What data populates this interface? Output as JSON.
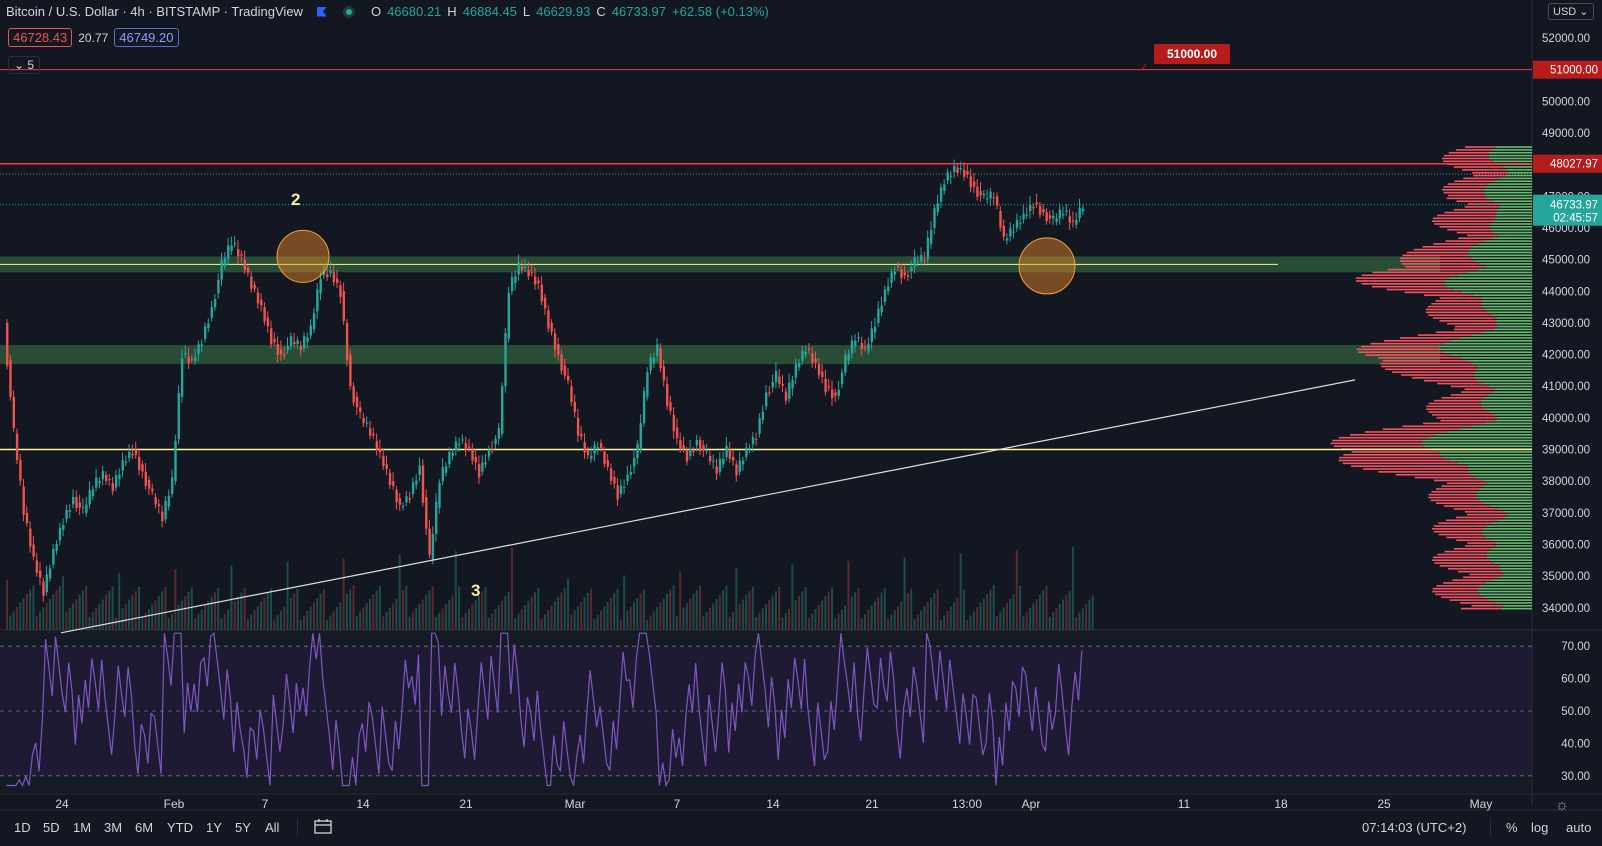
{
  "header": {
    "symbol": "Bitcoin / U.S. Dollar · 4h · BITSTAMP · TradingView",
    "open_label": "O",
    "open": "46680.21",
    "high_label": "H",
    "high": "46884.45",
    "low_label": "L",
    "low": "46629.93",
    "close_label": "C",
    "close": "46733.97",
    "change": "+62.58 (+0.13%)",
    "bid": "46728.43",
    "spread": "20.77",
    "ask": "46749.20",
    "indicator_count": "5"
  },
  "currency": "USD",
  "colors": {
    "background": "#131722",
    "up": "#26a69a",
    "down": "#ef5350",
    "volume_up": "#1f4b49",
    "volume_down": "#5b2a30",
    "resistance": "#f23645",
    "support": "#fff59d",
    "zone": "#2e5a3a",
    "rsi": "#7e57c2",
    "profile_up": "#66bb6a",
    "profile_down": "#f7525f"
  },
  "chart_data": {
    "type": "candlestick",
    "series": [
      {
        "name": "BTCUSD 4h",
        "description": "close path (approx)"
      }
    ],
    "x_ticks": [
      "24",
      "Feb",
      "7",
      "14",
      "21",
      "Mar",
      "7",
      "14",
      "21",
      "13:00",
      "Apr",
      "11",
      "18",
      "25",
      "May"
    ],
    "y_ticks": [
      "52000.00",
      "51000.00",
      "50000.00",
      "49000.00",
      "48000.00",
      "47000.00",
      "46000.00",
      "45000.00",
      "44000.00",
      "43000.00",
      "42000.00",
      "41000.00",
      "40000.00",
      "39000.00",
      "38000.00",
      "37000.00",
      "36000.00",
      "35000.00",
      "34000.00"
    ],
    "ylim": [
      33300,
      53200
    ],
    "close_path": [
      [
        0,
        43000
      ],
      [
        1,
        39500
      ],
      [
        2,
        37000
      ],
      [
        3,
        35500
      ],
      [
        4,
        34500
      ],
      [
        5,
        35800
      ],
      [
        6,
        36800
      ],
      [
        7,
        37500
      ],
      [
        8,
        37000
      ],
      [
        9,
        37800
      ],
      [
        10,
        38200
      ],
      [
        11,
        37800
      ],
      [
        12,
        38600
      ],
      [
        13,
        39000
      ],
      [
        14,
        38300
      ],
      [
        15,
        37500
      ],
      [
        16,
        36800
      ],
      [
        17,
        38000
      ],
      [
        18,
        42000
      ],
      [
        19,
        41800
      ],
      [
        20,
        42500
      ],
      [
        21,
        43500
      ],
      [
        22,
        44800
      ],
      [
        23,
        45500
      ],
      [
        24,
        45000
      ],
      [
        25,
        44200
      ],
      [
        26,
        43500
      ],
      [
        27,
        42500
      ],
      [
        28,
        42000
      ],
      [
        29,
        42400
      ],
      [
        30,
        42200
      ],
      [
        31,
        42800
      ],
      [
        32,
        44500
      ],
      [
        33,
        44600
      ],
      [
        34,
        44000
      ],
      [
        35,
        41000
      ],
      [
        36,
        40000
      ],
      [
        37,
        39500
      ],
      [
        38,
        38800
      ],
      [
        39,
        38000
      ],
      [
        40,
        37200
      ],
      [
        41,
        37600
      ],
      [
        42,
        38500
      ],
      [
        43,
        35500
      ],
      [
        44,
        38000
      ],
      [
        45,
        38800
      ],
      [
        46,
        39300
      ],
      [
        47,
        39000
      ],
      [
        48,
        38300
      ],
      [
        49,
        39000
      ],
      [
        50,
        39500
      ],
      [
        51,
        44000
      ],
      [
        52,
        44800
      ],
      [
        53,
        44600
      ],
      [
        54,
        44200
      ],
      [
        55,
        43000
      ],
      [
        56,
        42000
      ],
      [
        57,
        41000
      ],
      [
        58,
        39500
      ],
      [
        59,
        38700
      ],
      [
        60,
        39200
      ],
      [
        61,
        38400
      ],
      [
        62,
        37600
      ],
      [
        63,
        38200
      ],
      [
        64,
        39000
      ],
      [
        65,
        41500
      ],
      [
        66,
        42200
      ],
      [
        67,
        40500
      ],
      [
        68,
        39300
      ],
      [
        69,
        38800
      ],
      [
        70,
        39300
      ],
      [
        71,
        38800
      ],
      [
        72,
        38300
      ],
      [
        73,
        39000
      ],
      [
        74,
        38300
      ],
      [
        75,
        39000
      ],
      [
        76,
        39500
      ],
      [
        77,
        40800
      ],
      [
        78,
        41300
      ],
      [
        79,
        40600
      ],
      [
        80,
        41600
      ],
      [
        81,
        42200
      ],
      [
        82,
        41700
      ],
      [
        83,
        41000
      ],
      [
        84,
        40700
      ],
      [
        85,
        41800
      ],
      [
        86,
        42500
      ],
      [
        87,
        42100
      ],
      [
        88,
        43000
      ],
      [
        89,
        44000
      ],
      [
        90,
        44800
      ],
      [
        91,
        44500
      ],
      [
        92,
        44900
      ],
      [
        93,
        45000
      ],
      [
        94,
        46500
      ],
      [
        95,
        47500
      ],
      [
        96,
        47900
      ],
      [
        97,
        47800
      ],
      [
        98,
        47300
      ],
      [
        99,
        46900
      ],
      [
        100,
        47000
      ],
      [
        101,
        45600
      ],
      [
        102,
        46000
      ],
      [
        103,
        46400
      ],
      [
        104,
        46800
      ],
      [
        105,
        46500
      ],
      [
        106,
        46200
      ],
      [
        107,
        46500
      ],
      [
        108,
        46100
      ],
      [
        109,
        46734
      ]
    ],
    "rsi": {
      "ticks": [
        "70.00",
        "60.00",
        "50.00",
        "40.00",
        "30.00"
      ],
      "ylim": [
        25,
        75
      ]
    },
    "annotations": {
      "label_2": "2",
      "label_3": "3",
      "level_51000": "51000.00",
      "level_48027": "48027.97",
      "last_price": "46733.97",
      "countdown": "02:45:57",
      "resistance_high": 48027.97,
      "target": 51000,
      "support": 39000,
      "zone_upper": [
        44600,
        45100
      ],
      "zone_lower": [
        41700,
        42300
      ],
      "trendline": [
        [
          0,
          33400
        ],
        [
          109,
          41200
        ]
      ]
    }
  },
  "toolbar": {
    "ranges": [
      "1D",
      "5D",
      "1M",
      "3M",
      "6M",
      "YTD",
      "1Y",
      "5Y",
      "All"
    ],
    "time": "07:14:03 (UTC+2)",
    "percent": "%",
    "log": "log",
    "auto": "auto"
  }
}
